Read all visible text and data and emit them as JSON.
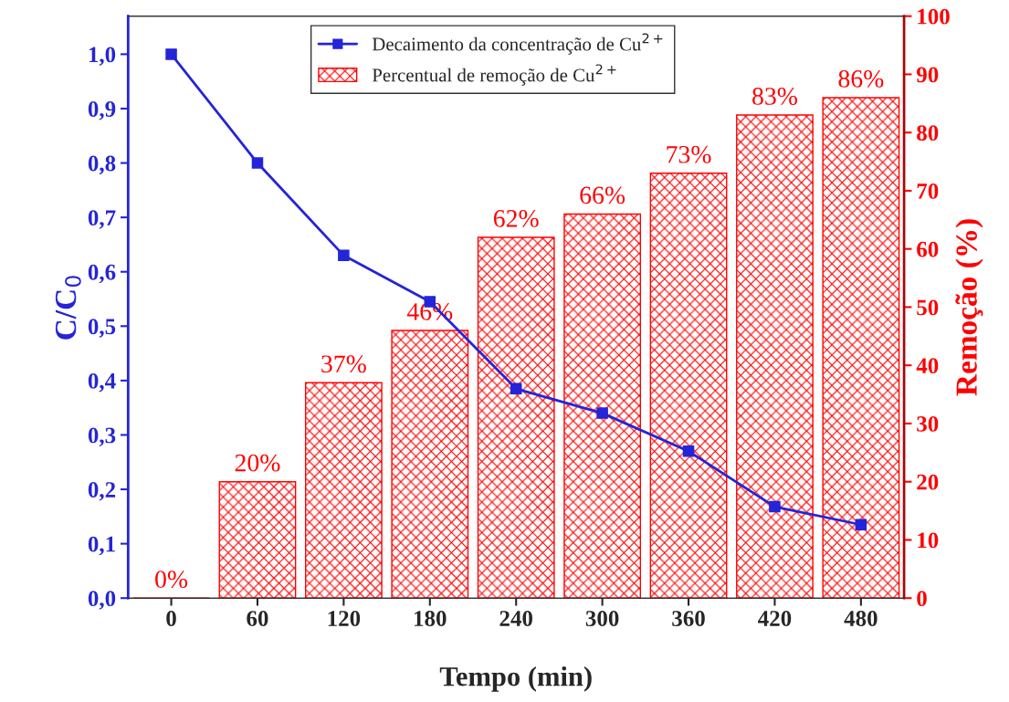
{
  "chart_data": {
    "type": "bar",
    "xlabel": "Tempo (min)",
    "ylabel": "C/C$_{0}$",
    "y2label": "Remoção (%)",
    "x": [
      0,
      60,
      120,
      180,
      240,
      300,
      360,
      420,
      480
    ],
    "xlim": [
      -30,
      510
    ],
    "xticks": [
      0,
      60,
      120,
      180,
      240,
      300,
      360,
      420,
      480
    ],
    "ylim": [
      0,
      1.07
    ],
    "yticks": [
      {
        "value": 0,
        "label": "0,0"
      },
      {
        "value": 0.1,
        "label": "0,1"
      },
      {
        "value": 0.2,
        "label": "0,2"
      },
      {
        "value": 0.3,
        "label": "0,3"
      },
      {
        "value": 0.4,
        "label": "0,4"
      },
      {
        "value": 0.5,
        "label": "0,5"
      },
      {
        "value": 0.6,
        "label": "0,6"
      },
      {
        "value": 0.7,
        "label": "0,7"
      },
      {
        "value": 0.8,
        "label": "0,8"
      },
      {
        "value": 0.9,
        "label": "0,9"
      },
      {
        "value": 1.0,
        "label": "1,0"
      }
    ],
    "y2lim": [
      0,
      100
    ],
    "y2ticks": [
      0,
      10,
      20,
      30,
      40,
      50,
      60,
      70,
      80,
      90,
      100
    ],
    "legend": "top",
    "grid": false,
    "series": [
      {
        "name": "Decaimento da concentração de Cu$^{2+}$",
        "type": "line",
        "color": "#2424d8",
        "marker": "square",
        "line_style": "solid",
        "values": [
          1.0,
          0.8,
          0.63,
          0.545,
          0.385,
          0.34,
          0.27,
          0.168,
          0.135
        ]
      },
      {
        "name": "Percentual de remoção de Cu$^{2+}$",
        "axis": "y2",
        "color": "#ff0000",
        "values": [
          0,
          20,
          37,
          46,
          62,
          66,
          73,
          83,
          86
        ],
        "value_labels": [
          "0%",
          "20%",
          "37%",
          "46%",
          "62%",
          "66%",
          "73%",
          "83%",
          "86%"
        ]
      }
    ]
  }
}
